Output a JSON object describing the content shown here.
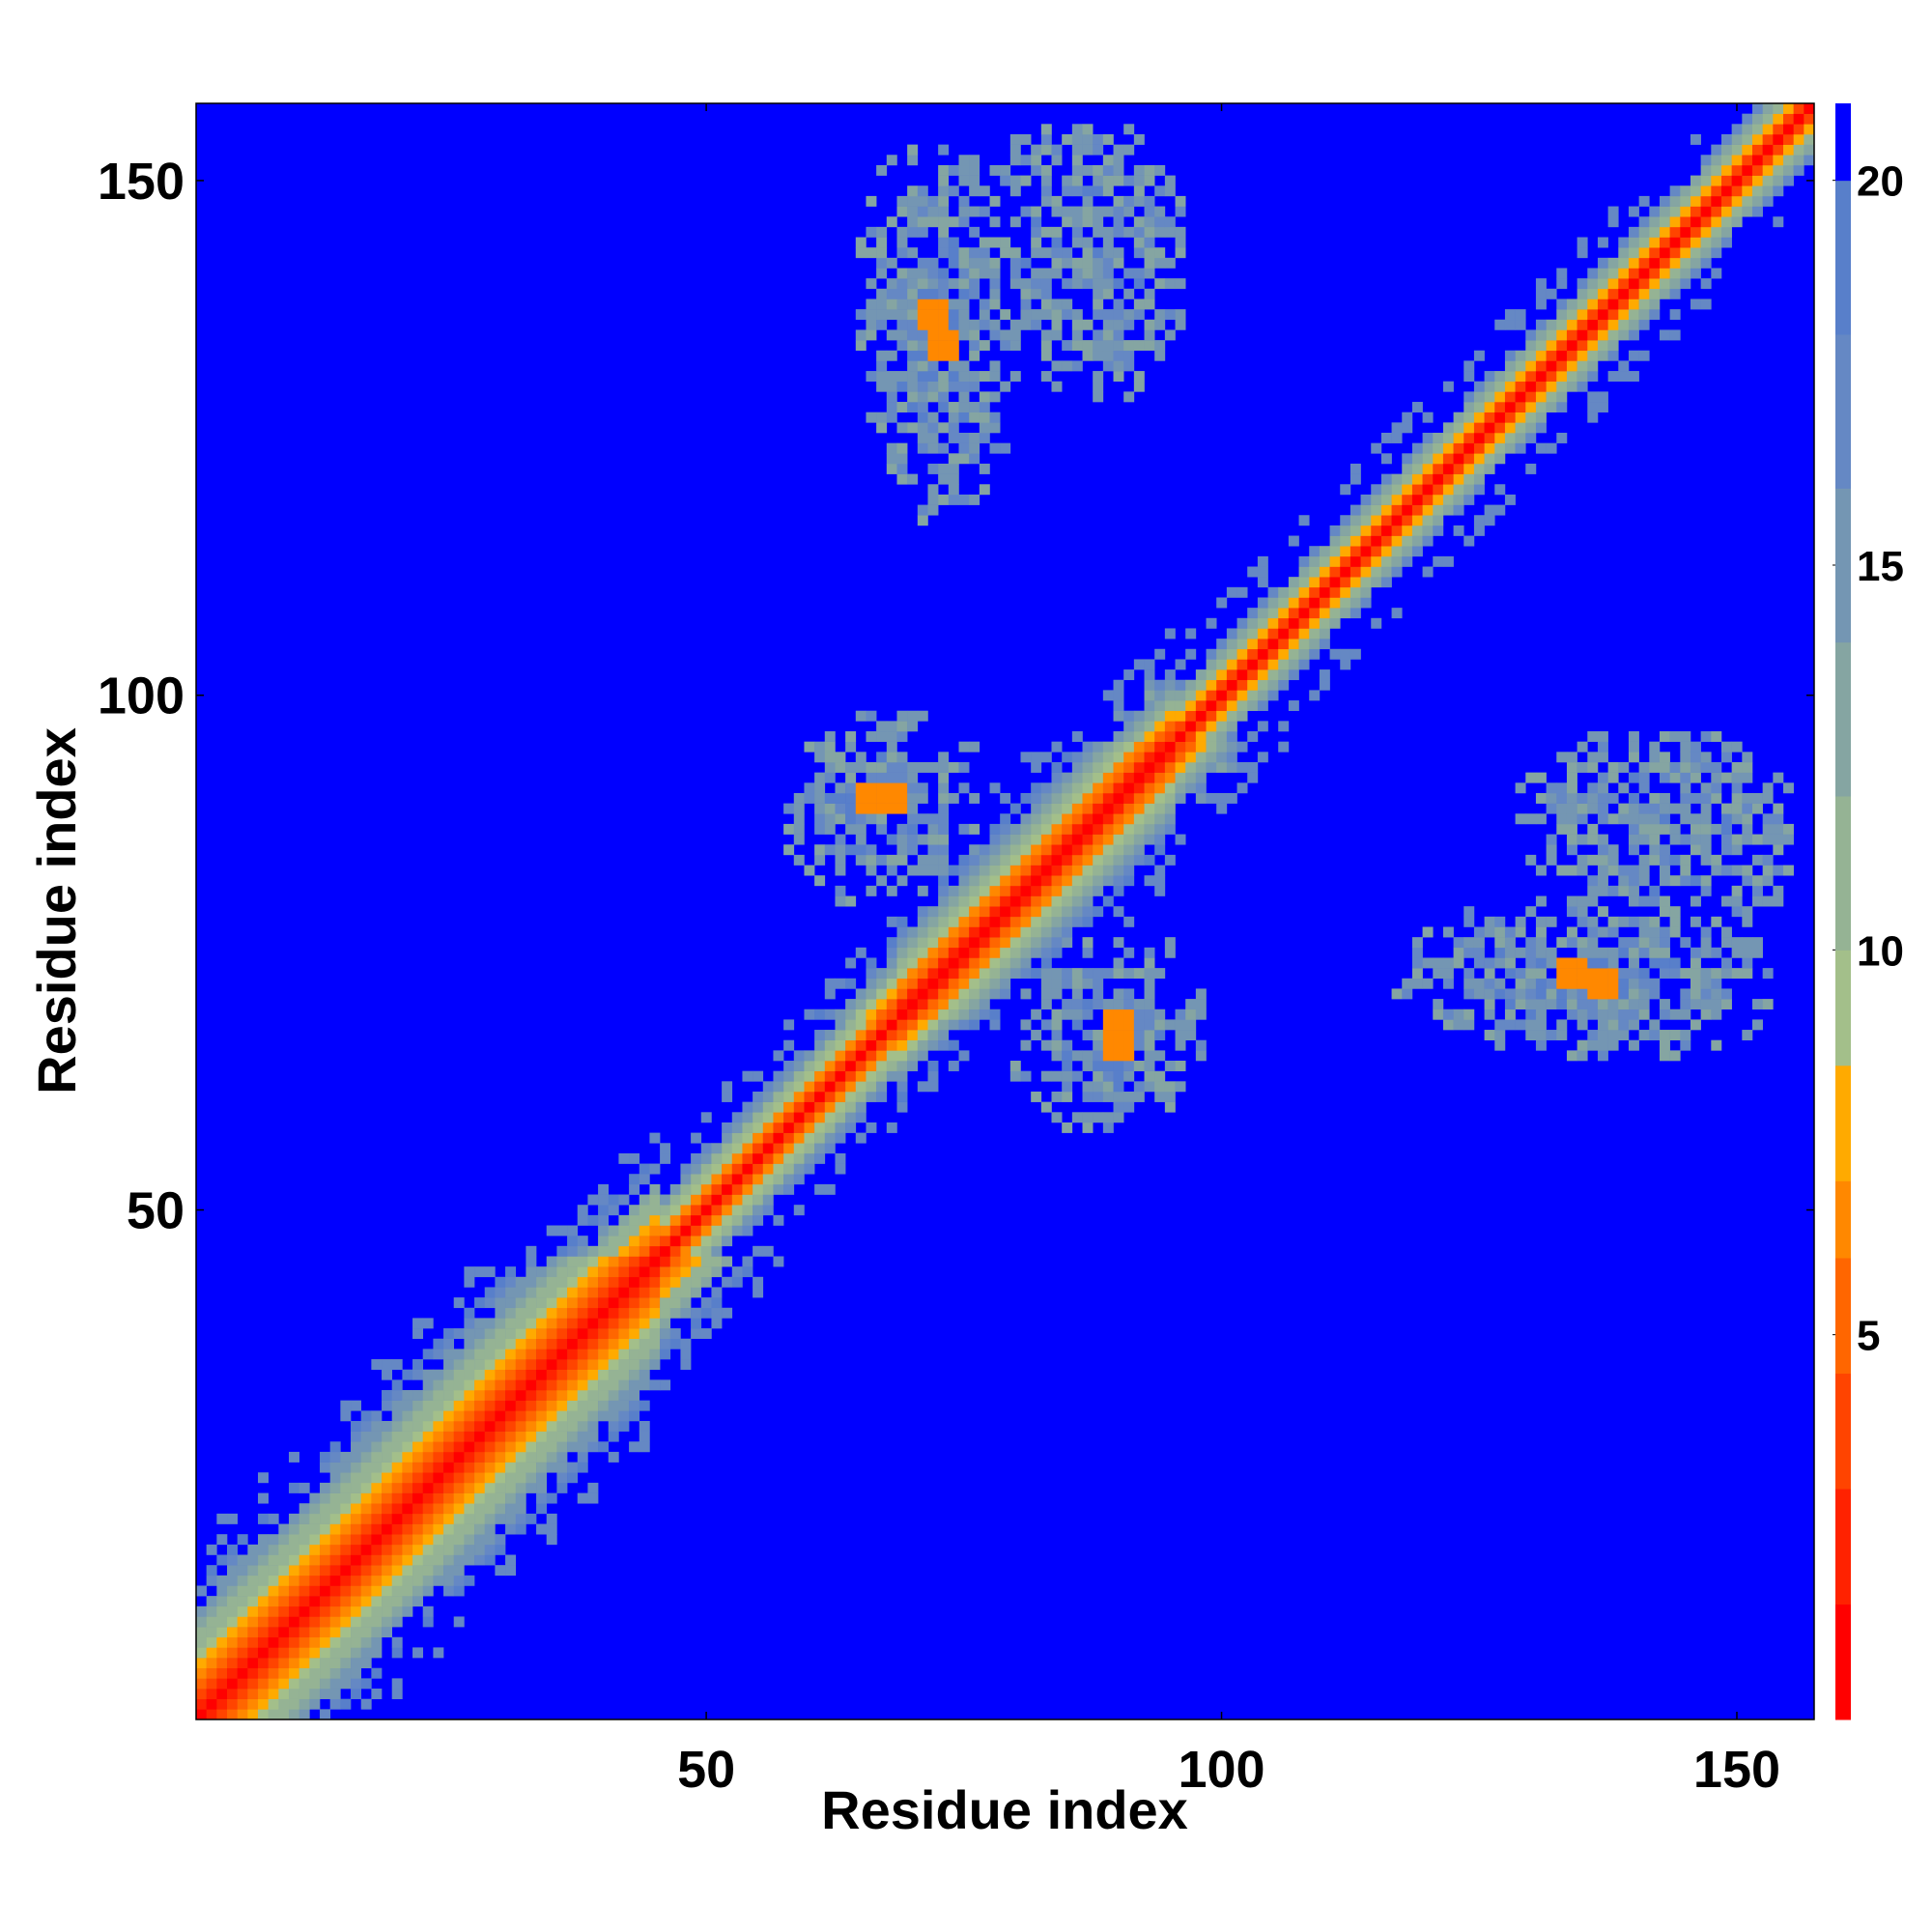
{
  "chart_data": {
    "type": "heatmap",
    "description_of_values": "Pairwise residue distance map (symmetric), values clipped at 21",
    "n": 157,
    "xlabel": "Residue index",
    "ylabel": "Residue index",
    "x_range": [
      1,
      157
    ],
    "y_range": [
      1,
      157
    ],
    "x_ticks": [
      50,
      100,
      150
    ],
    "y_ticks": [
      50,
      100,
      150
    ],
    "colorbar": {
      "range": [
        0,
        21
      ],
      "ticks": [
        5,
        10,
        15,
        20
      ],
      "stops": [
        {
          "max": 1.5,
          "color": "#ff0000"
        },
        {
          "max": 3.0,
          "color": "#ff2200"
        },
        {
          "max": 4.5,
          "color": "#ff4400"
        },
        {
          "max": 6.0,
          "color": "#ff6600"
        },
        {
          "max": 7.0,
          "color": "#ff8800"
        },
        {
          "max": 8.5,
          "color": "#ffaa00"
        },
        {
          "max": 10.0,
          "color": "#a3bf8a"
        },
        {
          "max": 12.0,
          "color": "#95b394"
        },
        {
          "max": 14.0,
          "color": "#85a5a2"
        },
        {
          "max": 16.0,
          "color": "#7496b3"
        },
        {
          "max": 18.0,
          "color": "#6588c4"
        },
        {
          "max": 20.0,
          "color": "#587fca"
        },
        {
          "max": 99.0,
          "color": "#0000ff"
        }
      ]
    },
    "diagonal_band": {
      "segments": [
        {
          "from": 1,
          "to": 45,
          "half_width_residues": 14
        },
        {
          "from": 45,
          "to": 68,
          "half_width_residues": 7
        },
        {
          "from": 68,
          "to": 95,
          "half_width_residues": 10
        },
        {
          "from": 95,
          "to": 157,
          "half_width_residues": 6
        }
      ]
    },
    "contact_clusters": [
      {
        "x_center": 73,
        "y_center": 134,
        "x_half": 8,
        "y_half": 18,
        "close_contact": [
          73,
          134
        ]
      },
      {
        "x_center": 88,
        "y_center": 142,
        "x_half": 9,
        "y_half": 14
      },
      {
        "x_center": 66,
        "y_center": 88,
        "x_half": 9,
        "y_half": 9,
        "close_contact": [
          66,
          90
        ]
      },
      {
        "x_center": 90,
        "y_center": 68,
        "x_half": 9,
        "y_half": 10,
        "close_contact": [
          90,
          68
        ]
      },
      {
        "x_center": 137,
        "y_center": 72,
        "x_half": 18,
        "y_half": 8,
        "close_contact": [
          137,
          72
        ]
      },
      {
        "x_center": 145,
        "y_center": 86,
        "x_half": 12,
        "y_half": 10
      },
      {
        "x_center": 98,
        "y_center": 93,
        "x_half": 3,
        "y_half": 3
      }
    ]
  }
}
